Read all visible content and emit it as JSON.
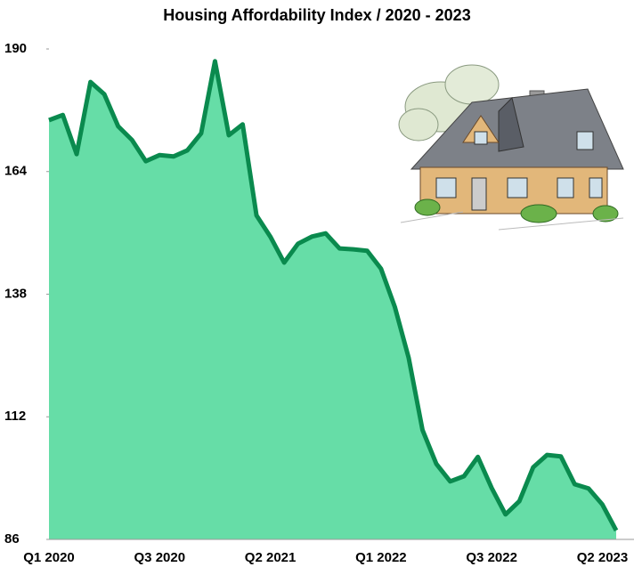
{
  "chart_data": {
    "type": "area",
    "title": "Housing Affordability Index / 2020 - 2023",
    "categories": [
      "Q1 2020",
      null,
      null,
      null,
      null,
      null,
      null,
      null,
      "Q3 2020",
      null,
      null,
      null,
      null,
      null,
      null,
      null,
      "Q2 2021",
      null,
      null,
      null,
      null,
      null,
      null,
      null,
      "Q1 2022",
      null,
      null,
      null,
      null,
      null,
      null,
      null,
      "Q3 2022",
      null,
      null,
      null,
      null,
      null,
      null,
      null,
      "Q2 2023",
      null
    ],
    "values": [
      174.9,
      176,
      167.7,
      183,
      180.4,
      173.6,
      170.7,
      166.2,
      167.5,
      167.2,
      168.5,
      172.1,
      187.4,
      171.7,
      174,
      154.7,
      150.2,
      144.7,
      148.7,
      150.2,
      150.9,
      147.7,
      147.5,
      147.2,
      143.4,
      135.3,
      124.5,
      109.2,
      102,
      98.3,
      99.4,
      103.5,
      96.9,
      91.3,
      94.1,
      101.3,
      103.9,
      103.6,
      97.7,
      96.8,
      93.4,
      87.9
    ],
    "color": "#66dda7",
    "line_color": "#0a8a4e",
    "ylim": [
      86,
      190
    ],
    "yticks": [
      86,
      112,
      138,
      164,
      190
    ],
    "grid": false
  }
}
